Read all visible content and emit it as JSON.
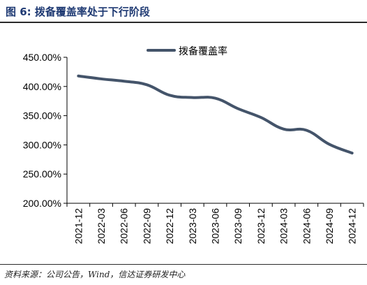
{
  "figure": {
    "title": "图 6: 拨备覆盖率处于下行阶段",
    "source": "资料来源：公司公告，Wind，信达证券研发中心"
  },
  "colors": {
    "series": "#44546a",
    "title": "#1f3a73"
  },
  "chart_data": {
    "type": "line",
    "title": "",
    "xlabel": "",
    "ylabel": "",
    "x": [
      "2021-12",
      "2022-03",
      "2022-06",
      "2022-09",
      "2022-12",
      "2023-03",
      "2023-06",
      "2023-09",
      "2023-12",
      "2024-03",
      "2024-06",
      "2024-09",
      "2024-12"
    ],
    "series": [
      {
        "name": "拨备覆盖率",
        "values": [
          418,
          413,
          409,
          403,
          385,
          381,
          380,
          362,
          347,
          327,
          325,
          301,
          286
        ]
      }
    ],
    "ylim": [
      200,
      450
    ],
    "yticks": [
      "200.00%",
      "250.00%",
      "300.00%",
      "350.00%",
      "400.00%",
      "450.00%"
    ],
    "ytick_values": [
      200,
      250,
      300,
      350,
      400,
      450
    ],
    "grid": false,
    "legend": "top-center"
  }
}
